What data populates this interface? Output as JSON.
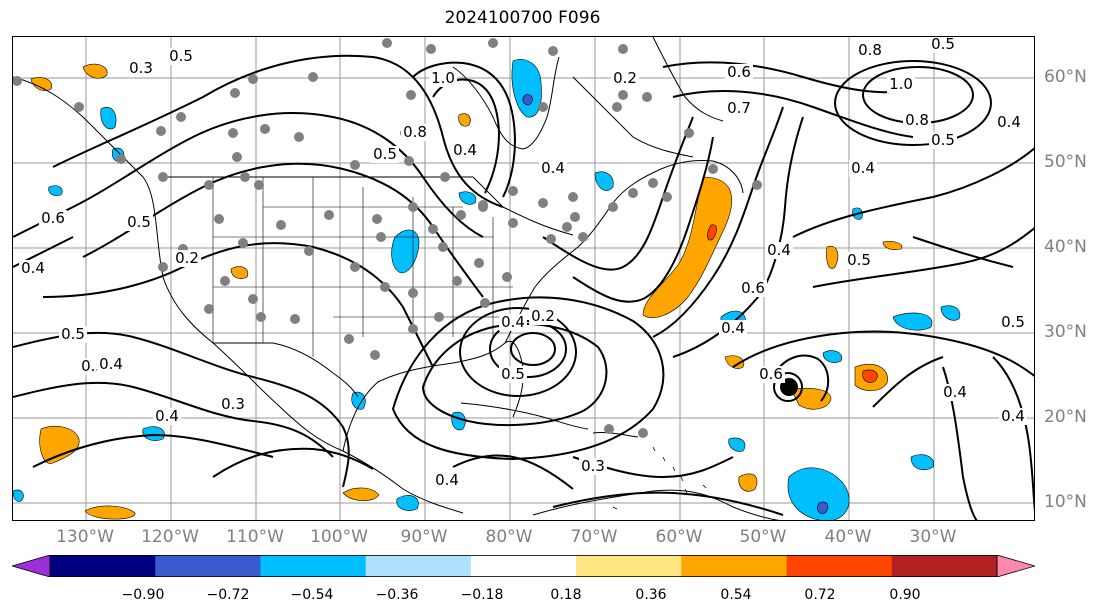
{
  "title": "2024100700 F096",
  "lon_labels": [
    "130°W",
    "120°W",
    "110°W",
    "100°W",
    "90°W",
    "80°W",
    "70°W",
    "60°W",
    "50°W",
    "40°W",
    "30°W"
  ],
  "lat_labels": [
    "60°N",
    "50°N",
    "40°N",
    "30°N",
    "20°N",
    "10°N"
  ],
  "contour_labels": [
    "0.5",
    "0.3",
    "1.0",
    "0.8",
    "0.5",
    "0.4",
    "0.6",
    "0.7",
    "1.0",
    "0.8",
    "0.5",
    "0.4",
    "0.4",
    "0.6",
    "0.5",
    "0.4",
    "0.5",
    "0.2",
    "0.4",
    "0.5",
    "0.5",
    "0.4",
    "0.3",
    "0.4",
    "0.4",
    "0.2",
    "0.6",
    "0.5",
    "0.4",
    "0.6",
    "0.4",
    "0.5",
    "0.4",
    "0.2",
    "0.8",
    "0.5",
    "0.4",
    "0.4",
    "0.3"
  ],
  "colorbar": {
    "ticks": [
      "−0.90",
      "−0.72",
      "−0.54",
      "−0.36",
      "−0.18",
      "0.18",
      "0.36",
      "0.54",
      "0.72",
      "0.90"
    ],
    "colors": [
      "#9b30d9",
      "#000080",
      "#3a5bd0",
      "#00bfff",
      "#aee2ff",
      "#ffffff",
      "#ffe680",
      "#ffa500",
      "#ff4500",
      "#b22222",
      "#ff88b0"
    ]
  },
  "fill_colors": {
    "blue_light": "#00bfff",
    "blue_dark": "#3a5bd0",
    "orange": "#ffa500",
    "red": "#ff4500",
    "station": "#808080"
  }
}
